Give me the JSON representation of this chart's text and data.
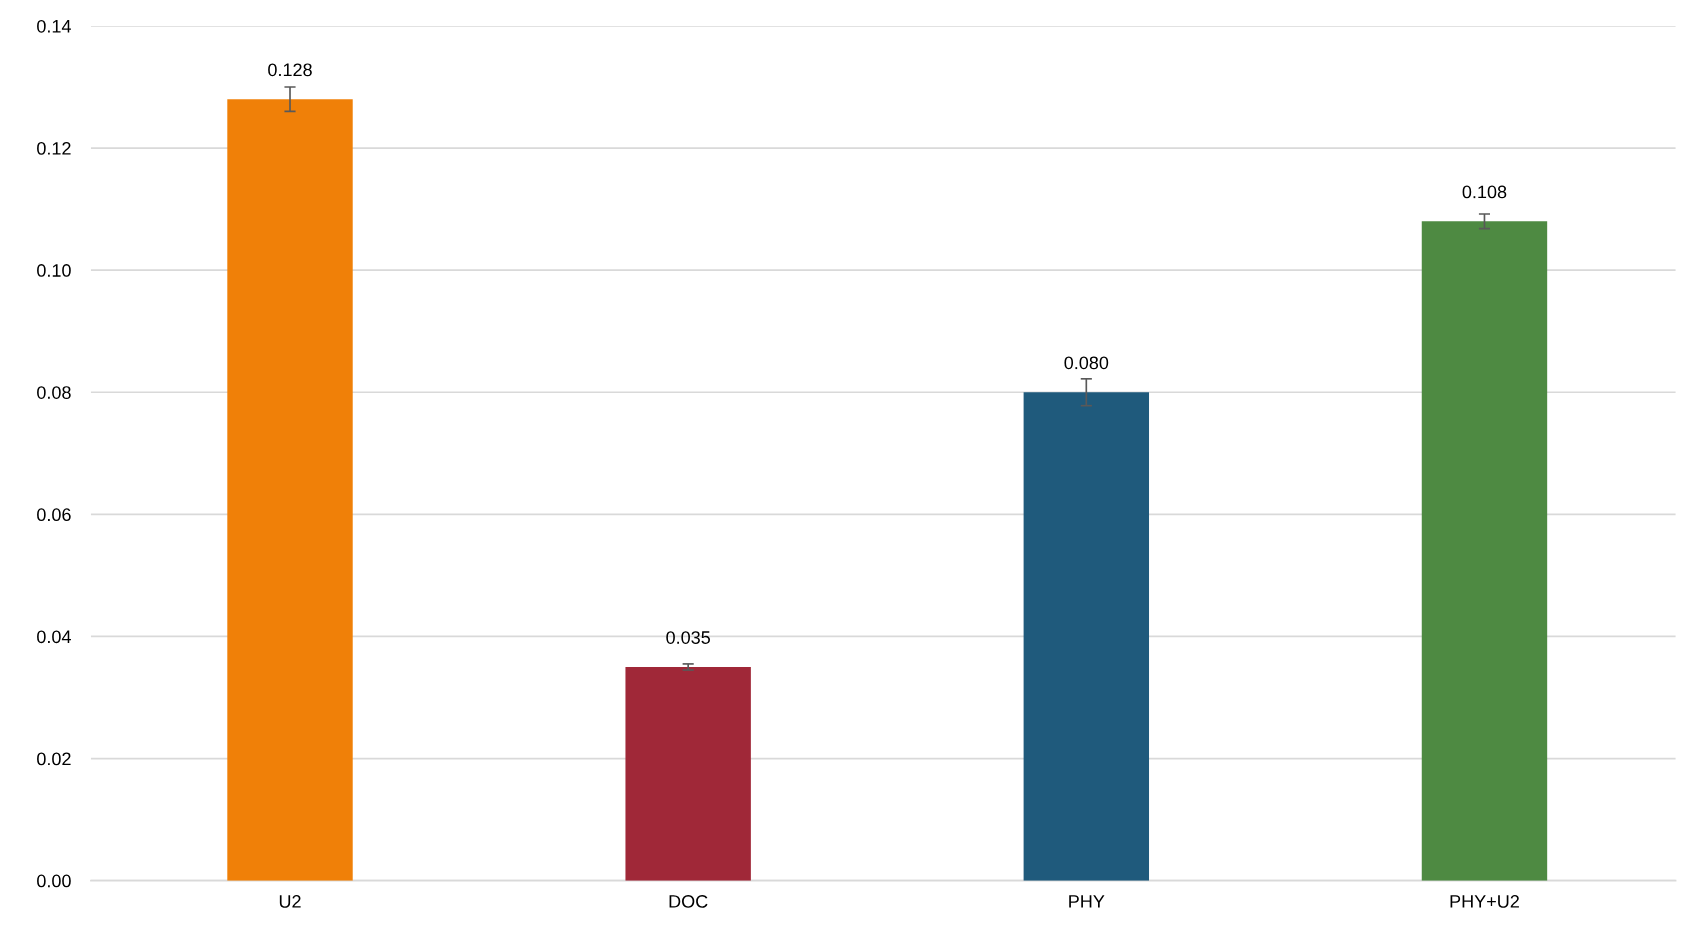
{
  "chart_data": {
    "type": "bar",
    "categories": [
      "U2",
      "DOC",
      "PHY",
      "PHY+U2"
    ],
    "values": [
      0.128,
      0.035,
      0.08,
      0.108
    ],
    "colors": [
      "#f08008",
      "#a02838",
      "#1f5a7c",
      "#4e8a42"
    ],
    "errors": [
      0.002,
      0.0005,
      0.0022,
      0.0012
    ],
    "value_labels": [
      "0.128",
      "0.035",
      "0.080",
      "0.108"
    ],
    "ylim": [
      0,
      0.14
    ],
    "yticks": [
      {
        "value": 0,
        "label": "0.00"
      },
      {
        "value": 0.02,
        "label": "0.02"
      },
      {
        "value": 0.04,
        "label": "0.04"
      },
      {
        "value": 0.06,
        "label": "0.06"
      },
      {
        "value": 0.08,
        "label": "0.08"
      },
      {
        "value": 0.1,
        "label": "0.10"
      },
      {
        "value": 0.12,
        "label": "0.12"
      },
      {
        "value": 0.14,
        "label": "0.14"
      }
    ],
    "grid": "y"
  }
}
